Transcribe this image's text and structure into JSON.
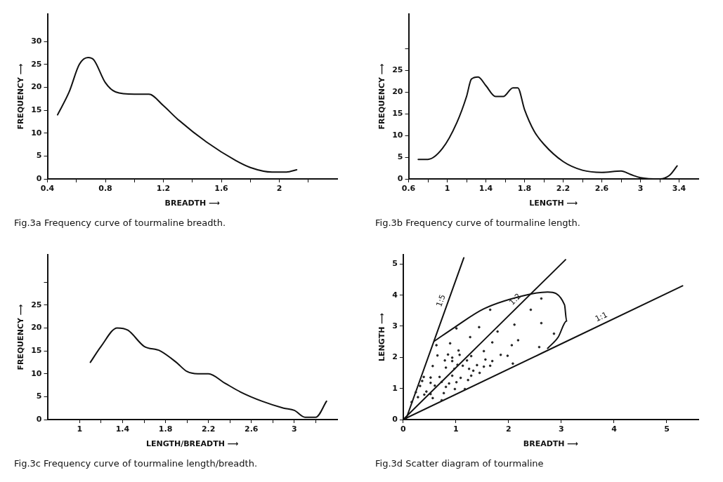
{
  "chart_data": [
    {
      "type": "line",
      "title": "Fig.3a Frequency curve of tourmaline breadth.",
      "xlabel": "BREADTH ⟶",
      "ylabel": "FREQUENCY ⟶",
      "grid": false,
      "x": [
        0.47,
        0.55,
        0.62,
        0.68,
        0.72,
        0.8,
        0.87,
        1.0,
        1.1,
        1.2,
        1.3,
        1.5,
        1.7,
        1.8,
        1.95,
        2.05,
        2.12
      ],
      "values": [
        14,
        19,
        25,
        26.5,
        26,
        21,
        19,
        18.5,
        18.5,
        16,
        13,
        8,
        4,
        2.5,
        1.5,
        1.5,
        2
      ],
      "color": "#111111",
      "xlim": [
        0.4,
        2.4
      ],
      "xticks": [
        0.4,
        {
          "value": 0.6,
          "label": null
        },
        0.8,
        {
          "value": 1.0,
          "label": null
        },
        1.2,
        {
          "value": 1.4,
          "label": null
        },
        1.6,
        {
          "value": 1.8,
          "label": null
        },
        2.0,
        {
          "value": 2.2,
          "label": null
        }
      ],
      "ylim": [
        0,
        36
      ],
      "yticks": [
        0,
        5,
        10,
        15,
        20,
        25,
        30
      ]
    },
    {
      "type": "line",
      "title": "Fig.3b Frequency curve of tourmaline length.",
      "xlabel": "LENGTH ⟶",
      "ylabel": "FREQUENCY ⟶",
      "grid": false,
      "x": [
        0.7,
        0.8,
        0.95,
        1.1,
        1.2,
        1.25,
        1.32,
        1.4,
        1.5,
        1.58,
        1.68,
        1.73,
        1.8,
        1.9,
        2.0,
        2.2,
        2.4,
        2.6,
        2.8,
        2.9,
        3.0,
        3.2,
        3.3,
        3.38
      ],
      "values": [
        4.5,
        4.5,
        7,
        13,
        19,
        23,
        23.5,
        21.5,
        19,
        19,
        21,
        21,
        16,
        11,
        8,
        4,
        2,
        1.5,
        1.8,
        1,
        0.3,
        0,
        0.8,
        3
      ],
      "color": "#111111",
      "xlim": [
        0.6,
        3.6
      ],
      "xticks": [
        0.6,
        {
          "value": 0.8,
          "label": null
        },
        1.0,
        {
          "value": 1.2,
          "label": null
        },
        1.4,
        {
          "value": 1.6,
          "label": null
        },
        1.8,
        {
          "value": 2.0,
          "label": null
        },
        2.2,
        {
          "value": 2.4,
          "label": null
        },
        2.6,
        {
          "value": 2.8,
          "label": null
        },
        3.0,
        {
          "value": 3.2,
          "label": null
        },
        3.4
      ],
      "ylim": [
        0,
        38
      ],
      "yticks": [
        0,
        5,
        10,
        15,
        20,
        25,
        {
          "value": 30,
          "label": null
        }
      ]
    },
    {
      "type": "line",
      "title": "Fig.3c Frequency curve of tourmaline length/breadth.",
      "xlabel": "LENGTH/BREADTH ⟶",
      "ylabel": "FREQUENCY ⟶",
      "grid": false,
      "x": [
        1.1,
        1.2,
        1.35,
        1.45,
        1.6,
        1.75,
        1.9,
        2.0,
        2.1,
        2.2,
        2.35,
        2.5,
        2.7,
        2.9,
        3.0,
        3.1,
        3.2,
        3.3
      ],
      "values": [
        12.5,
        16,
        20,
        19.5,
        16,
        15,
        12.5,
        10.5,
        10,
        10,
        8,
        6,
        4,
        2.5,
        2,
        0.5,
        0.5,
        4
      ],
      "color": "#111111",
      "xlim": [
        0.7,
        3.4
      ],
      "xticks": [
        1.0,
        {
          "value": 1.2,
          "label": null
        },
        1.4,
        {
          "value": 1.6,
          "label": null
        },
        1.8,
        {
          "value": 2.0,
          "label": null
        },
        2.2,
        {
          "value": 2.4,
          "label": null
        },
        2.6,
        {
          "value": 2.8,
          "label": null
        },
        3.0,
        {
          "value": 3.2,
          "label": null
        }
      ],
      "ylim": [
        0,
        36
      ],
      "yticks": [
        0,
        5,
        10,
        15,
        20,
        25,
        {
          "value": 30,
          "label": null
        }
      ]
    },
    {
      "type": "scatter",
      "title": "Fig.3d Scatter diagram of tourmaline",
      "xlabel": "BREADTH ⟶",
      "ylabel": "LENGTH ⟶",
      "grid": false,
      "series": [
        {
          "type": "scatter",
          "marker": "circle",
          "color": "#222222",
          "x": [
            2.62,
            2.42,
            1.65,
            2.62,
            2.11,
            1.44,
            1.01,
            1.79,
            2.86,
            1.27,
            2.18,
            1.69,
            0.89,
            2.06,
            2.58,
            0.63,
            1.05,
            1.53,
            0.85,
            1.07,
            0.65,
            1.29,
            1.85,
            1.98,
            0.93,
            0.79,
            0.93,
            1.21,
            1.56,
            1.69,
            2.08,
            0.56,
            1.03,
            1.13,
            1.4,
            1.53,
            1.65,
            0.81,
            0.97,
            1.25,
            1.33,
            1.45,
            0.39,
            0.52,
            0.69,
            0.93,
            1.09,
            1.29,
            1.23,
            0.36,
            0.52,
            0.73,
            0.87,
            1.01,
            0.32,
            0.6,
            0.81,
            0.98,
            1.17,
            0.24,
            0.44,
            0.77,
            0.28,
            0.56,
            0.4,
            0.73,
            0.16,
            0.52
          ],
          "values": [
            3.89,
            3.53,
            3.53,
            3.1,
            3.05,
            2.97,
            2.93,
            2.83,
            2.76,
            2.65,
            2.55,
            2.48,
            2.45,
            2.39,
            2.33,
            2.39,
            2.22,
            2.2,
            2.09,
            2.08,
            2.06,
            2.04,
            2.08,
            2.05,
            1.99,
            1.9,
            1.88,
            1.9,
            1.93,
            1.88,
            1.8,
            1.72,
            1.76,
            1.73,
            1.75,
            1.7,
            1.73,
            1.67,
            1.63,
            1.63,
            1.57,
            1.5,
            1.37,
            1.35,
            1.37,
            1.41,
            1.34,
            1.41,
            1.27,
            1.24,
            1.18,
            1.21,
            1.16,
            1.2,
            1.08,
            1.09,
            1.05,
            0.98,
            0.98,
            0.88,
            0.9,
            0.85,
            0.72,
            0.69,
            0.8,
            0.62,
            0.56,
            0.82
          ]
        },
        {
          "type": "line",
          "name": "1:1",
          "color": "#111111",
          "x": [
            0,
            5.3
          ],
          "values": [
            0,
            4.3
          ]
        },
        {
          "type": "line",
          "name": "1:2",
          "color": "#111111",
          "x": [
            0,
            3.08
          ],
          "values": [
            0,
            5.14
          ]
        },
        {
          "type": "line",
          "name": "1:5",
          "color": "#111111",
          "x": [
            0.05,
            1.15
          ],
          "values": [
            0,
            5.2
          ]
        },
        {
          "type": "line",
          "color": "#111111",
          "x": [
            0.59,
            0.98,
            1.53,
            2.38,
            2.74,
            3.06,
            3.1,
            2.94,
            2.74
          ],
          "values": [
            2.52,
            2.97,
            3.56,
            4.02,
            4.1,
            3.69,
            3.17,
            2.65,
            2.29
          ]
        }
      ],
      "xlim": [
        0,
        5.6
      ],
      "xticks": [
        0,
        1,
        2,
        3,
        4,
        5
      ],
      "ylim": [
        0,
        5.3
      ],
      "yticks": [
        0,
        1,
        2,
        3,
        4,
        5
      ]
    }
  ]
}
